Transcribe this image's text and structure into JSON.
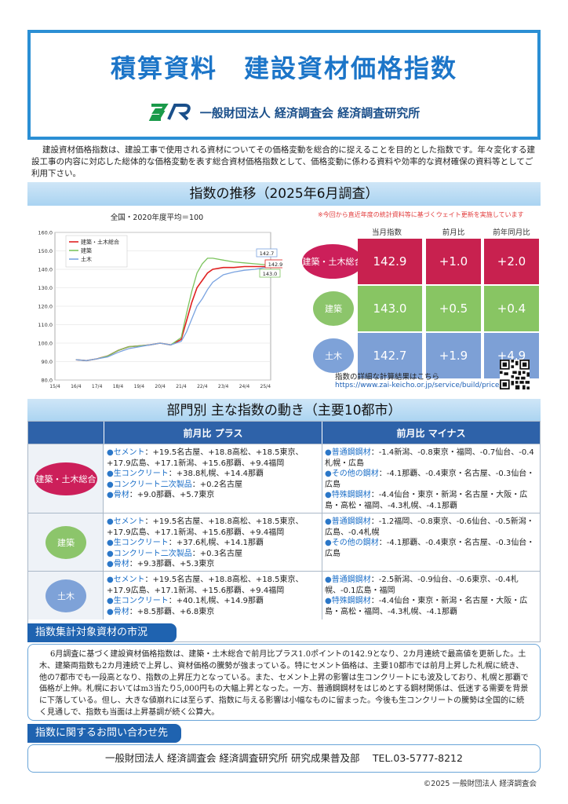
{
  "header": {
    "title": "積算資料　建設資材価格指数",
    "org": "一般財団法人 経済調査会 経済調査研究所"
  },
  "intro": "建設資材価格指数は、建設工事で使用される資材についてその価格変動を総合的に捉えることを目的とした指数です。年々変化する建設工事の内容に対応した総体的な価格変動を表す総合資材価格指数として、価格変動に係わる資料や効率的な資材確保の資料等としてご利用下さい。",
  "trend": {
    "heading": "指数の推移（2025年6月調査）",
    "note": "※今回から直近年度の統計資料等に基づくウェイト更新を実施しています"
  },
  "chart_data": {
    "type": "line",
    "title": "全国・2020年度平均＝100",
    "x": [
      "16/4",
      "16/10",
      "17/4",
      "17/10",
      "18/4",
      "18/10",
      "19/4",
      "19/10",
      "20/4",
      "20/10",
      "21/4",
      "21/7",
      "21/10",
      "22/1",
      "22/4",
      "22/7",
      "22/10",
      "23/4",
      "23/10",
      "24/4",
      "24/10",
      "25/4",
      "25/6"
    ],
    "x_ticks": [
      "15/4",
      "16/4",
      "17/4",
      "18/4",
      "19/4",
      "20/4",
      "21/4",
      "22/4",
      "23/4",
      "24/4",
      "25/4"
    ],
    "ylim": [
      80,
      160
    ],
    "y_ticks": [
      "80.0",
      "90.0",
      "100.0",
      "110.0",
      "120.0",
      "130.0",
      "140.0",
      "150.0",
      "160.0"
    ],
    "legend": "top-left",
    "grid": true,
    "series": [
      {
        "name": "建築・土木総合",
        "color": "#e02020",
        "values": [
          91,
          90.5,
          91.5,
          93,
          96,
          98,
          98.5,
          99,
          100,
          99,
          102,
          112,
          122,
          130,
          134,
          138,
          140,
          141,
          141,
          141.5,
          141.5,
          141.5,
          142.9
        ]
      },
      {
        "name": "建築",
        "color": "#7cc45e",
        "values": [
          91,
          90.5,
          91.5,
          93,
          96,
          98,
          98.5,
          99,
          100,
          99,
          103,
          116,
          128,
          138,
          143,
          146,
          146,
          145,
          144,
          143.5,
          143,
          142.5,
          143.0
        ]
      },
      {
        "name": "土木",
        "color": "#7aa3e0",
        "values": [
          91,
          90.5,
          91.5,
          92.5,
          95,
          97,
          98,
          99,
          100,
          99,
          101,
          106,
          113,
          120,
          124,
          129,
          133,
          137,
          138.5,
          139.5,
          140,
          141,
          142.7
        ]
      }
    ],
    "end_labels": [
      "142.7",
      "142.9",
      "143.0"
    ]
  },
  "indices": {
    "headers": [
      "当月指数",
      "前月比",
      "前年同月比"
    ],
    "rows": [
      {
        "label": "建築・土木総合",
        "color": "#cc1f5a",
        "values": [
          "142.9",
          "+1.0",
          "+2.0"
        ]
      },
      {
        "label": "建築",
        "color": "#8cc56b",
        "values": [
          "143.0",
          "+0.5",
          "+0.4"
        ]
      },
      {
        "label": "土木",
        "color": "#7ea2d8",
        "values": [
          "142.7",
          "+1.9",
          "+4.9"
        ]
      }
    ]
  },
  "link": {
    "label": "指数の詳細な計算結果はこちら",
    "url": "https://www.zai-keicho.or.jp/service/build/price/"
  },
  "section": {
    "heading": "部門別 主な指数の動き（主要10都市）"
  },
  "table": {
    "col_plus": "前月比 プラス",
    "col_minus": "前月比 マイナス",
    "rows": [
      {
        "label": "建築・土木総合",
        "plus": [
          {
            "k": "セメント",
            "v": "：+19.5名古屋、+18.8高松、+18.5東京、+17.9広島、+17.1新潟、+15.6那覇、+9.4福岡"
          },
          {
            "k": "生コンクリート",
            "v": "：+38.8札幌、+14.4那覇"
          },
          {
            "k": "コンクリート二次製品",
            "v": "：+0.2名古屋"
          },
          {
            "k": "骨材",
            "v": "：+9.0那覇、+5.7東京"
          }
        ],
        "minus": [
          {
            "k": "普通鋼鋼材",
            "v": "：-1.4新潟、-0.8東京・福岡、-0.7仙台、-0.4札幌・広島"
          },
          {
            "k": "その他の鋼材",
            "v": "：-4.1那覇、-0.4東京・名古屋、-0.3仙台・広島"
          },
          {
            "k": "特殊鋼鋼材",
            "v": "：-4.4仙台・東京・新潟・名古屋・大阪・広島・高松・福岡、-4.3札幌、-4.1那覇"
          }
        ]
      },
      {
        "label": "建築",
        "plus": [
          {
            "k": "セメント",
            "v": "：+19.5名古屋、+18.8高松、+18.5東京、+17.9広島、+17.1新潟、+15.6那覇、+9.4福岡"
          },
          {
            "k": "生コンクリート",
            "v": "：+37.6札幌、+14.1那覇"
          },
          {
            "k": "コンクリート二次製品",
            "v": "：+0.3名古屋"
          },
          {
            "k": "骨材",
            "v": "：+9.3那覇、+5.3東京"
          }
        ],
        "minus": [
          {
            "k": "普通鋼鋼材",
            "v": "：-1.2福岡、-0.8東京、-0.6仙台、-0.5新潟・広島、-0.4札幌"
          },
          {
            "k": "その他の鋼材",
            "v": "：-4.1那覇、-0.4東京・名古屋、-0.3仙台・広島"
          }
        ]
      },
      {
        "label": "土木",
        "plus": [
          {
            "k": "セメント",
            "v": "：+19.5名古屋、+18.8高松、+18.5東京、+17.9広島、+17.1新潟、+15.6那覇、+9.4福岡"
          },
          {
            "k": "生コンクリート",
            "v": "：+40.1札幌、+14.9那覇"
          },
          {
            "k": "骨材",
            "v": "：+8.5那覇、+6.8東京"
          }
        ],
        "minus": [
          {
            "k": "普通鋼鋼材",
            "v": "：-2.5新潟、-0.9仙台、-0.6東京、-0.4札幌、-0.1広島・福岡"
          },
          {
            "k": "特殊鋼鋼材",
            "v": "：-4.4仙台・東京・新潟・名古屋・大阪・広島・高松・福岡、-4.3札幌、-4.1那覇"
          }
        ]
      }
    ]
  },
  "market": {
    "heading": "指数集計対象資材の市況",
    "text": "6月調査に基づく建設資材価格指数は、建築・土木総合で前月比プラス1.0ポイントの142.9となり、2カ月連続で最高値を更新した。土木、建築両指数も2カ月連続で上昇し、資材価格の騰勢が強まっている。特にセメント価格は、主要10都市では前月上昇した札幌に続き、他の7都市でも一段高となり、指数の上昇圧力となっている。また、セメント上昇の影響は生コンクリートにも波及しており、札幌と那覇で価格が上伸。札幌においてはm3当たり5,000円もの大幅上昇となった。一方、普通鋼鋼材をはじめとする鋼材関係は、低迷する需要を背景に下落している。但し、大きな値崩れには至らず、指数に与える影響は小幅なものに留まった。今後も生コンクリートの騰勢は全国的に続く見通しで、指数も当面は上昇基調が続く公算大。"
  },
  "contact": {
    "heading": "指数に関するお問い合わせ先",
    "text": "一般財団法人 経済調査会 経済調査研究所 研究成果普及部　 TEL.03-5777-8212"
  },
  "copyright": "©2025 一般財団法人 経済調査会"
}
